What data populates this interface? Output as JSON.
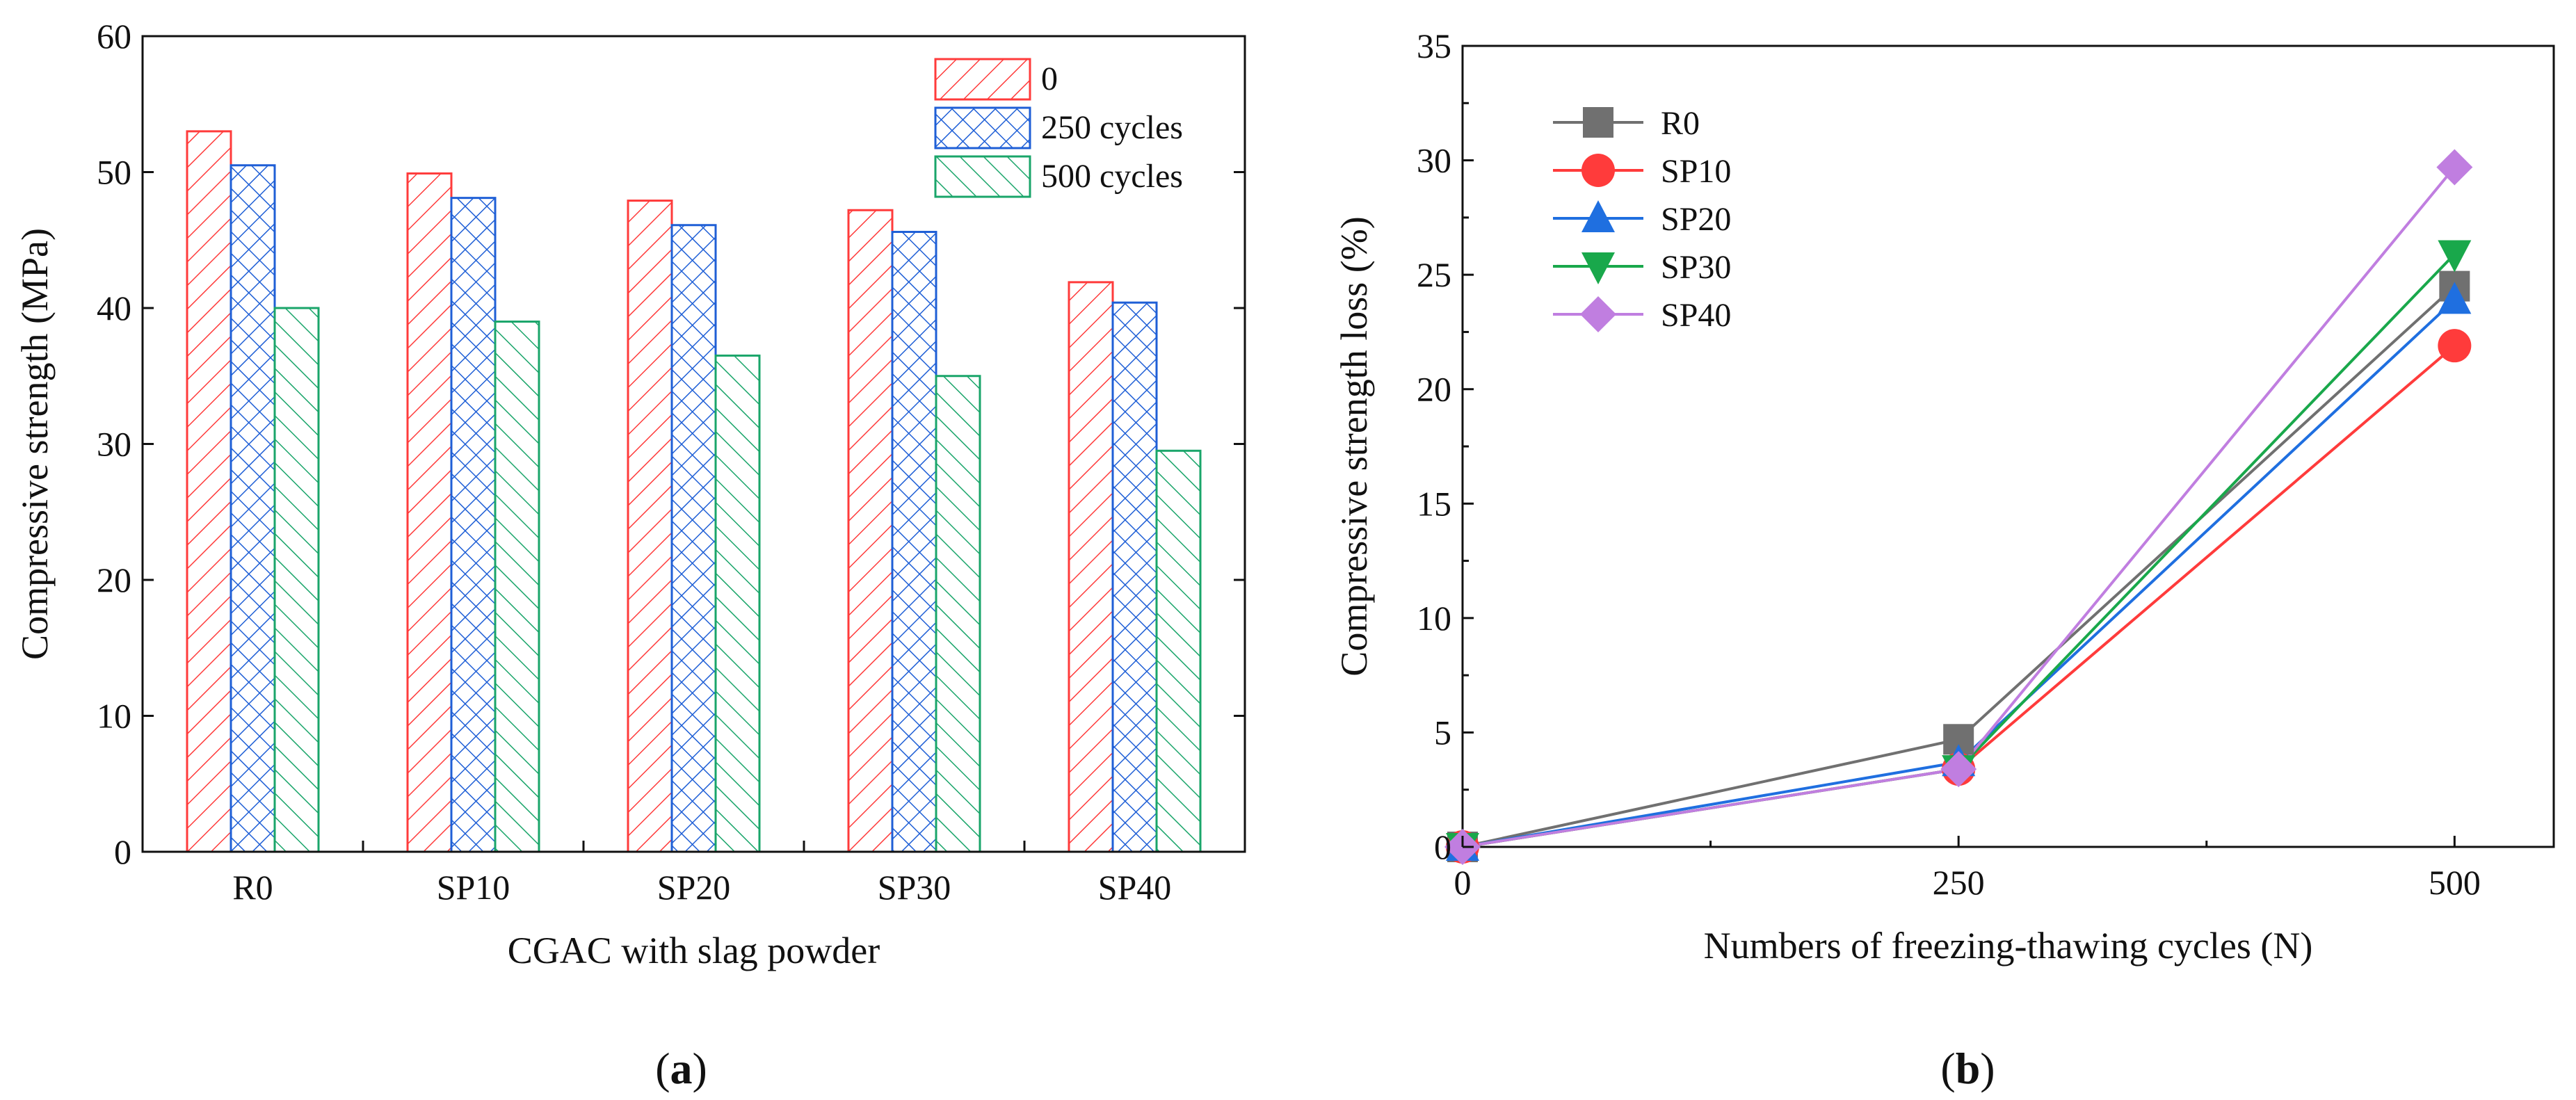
{
  "chart_data": [
    {
      "type": "bar",
      "panel_label": "a",
      "title": "",
      "xlabel": "CGAC with slag powder",
      "ylabel": "Compressive strength (MPa)",
      "ylim": [
        0,
        60
      ],
      "yticks": [
        0,
        10,
        20,
        30,
        40,
        50,
        60
      ],
      "categories": [
        "R0",
        "SP10",
        "SP20",
        "SP30",
        "SP40"
      ],
      "legend_position": "top-right",
      "series": [
        {
          "name": "0",
          "color": "#ff3b3b",
          "pattern": "diagonal",
          "values": [
            53.0,
            49.9,
            47.9,
            47.2,
            41.9
          ]
        },
        {
          "name": "250 cycles",
          "color": "#1f5fd6",
          "pattern": "crosshatch",
          "values": [
            50.5,
            48.1,
            46.1,
            45.6,
            40.4
          ]
        },
        {
          "name": "500 cycles",
          "color": "#1aa56a",
          "pattern": "backslash",
          "values": [
            40.0,
            39.0,
            36.5,
            35.0,
            29.5
          ]
        }
      ]
    },
    {
      "type": "line",
      "panel_label": "b",
      "title": "",
      "xlabel": "Numbers of freezing-thawing cycles (N)",
      "ylabel": "Compressive strength loss (%)",
      "xlim": [
        0,
        550
      ],
      "ylim": [
        0,
        35
      ],
      "xticks": [
        0,
        250,
        500
      ],
      "yticks": [
        0,
        5,
        10,
        15,
        20,
        25,
        30,
        35
      ],
      "x": [
        0,
        250,
        500
      ],
      "legend_position": "top-left",
      "series": [
        {
          "name": "R0",
          "color": "#707070",
          "marker": "square",
          "values": [
            0,
            4.7,
            24.5
          ]
        },
        {
          "name": "SP10",
          "color": "#ff3b3b",
          "marker": "circle",
          "values": [
            0,
            3.4,
            21.9
          ]
        },
        {
          "name": "SP20",
          "color": "#1f6fe0",
          "marker": "triangle-up",
          "values": [
            0,
            3.7,
            23.9
          ]
        },
        {
          "name": "SP30",
          "color": "#19a84b",
          "marker": "triangle-down",
          "values": [
            0,
            3.4,
            25.9
          ]
        },
        {
          "name": "SP40",
          "color": "#c07ee0",
          "marker": "diamond",
          "values": [
            0,
            3.4,
            29.7
          ]
        }
      ]
    }
  ]
}
